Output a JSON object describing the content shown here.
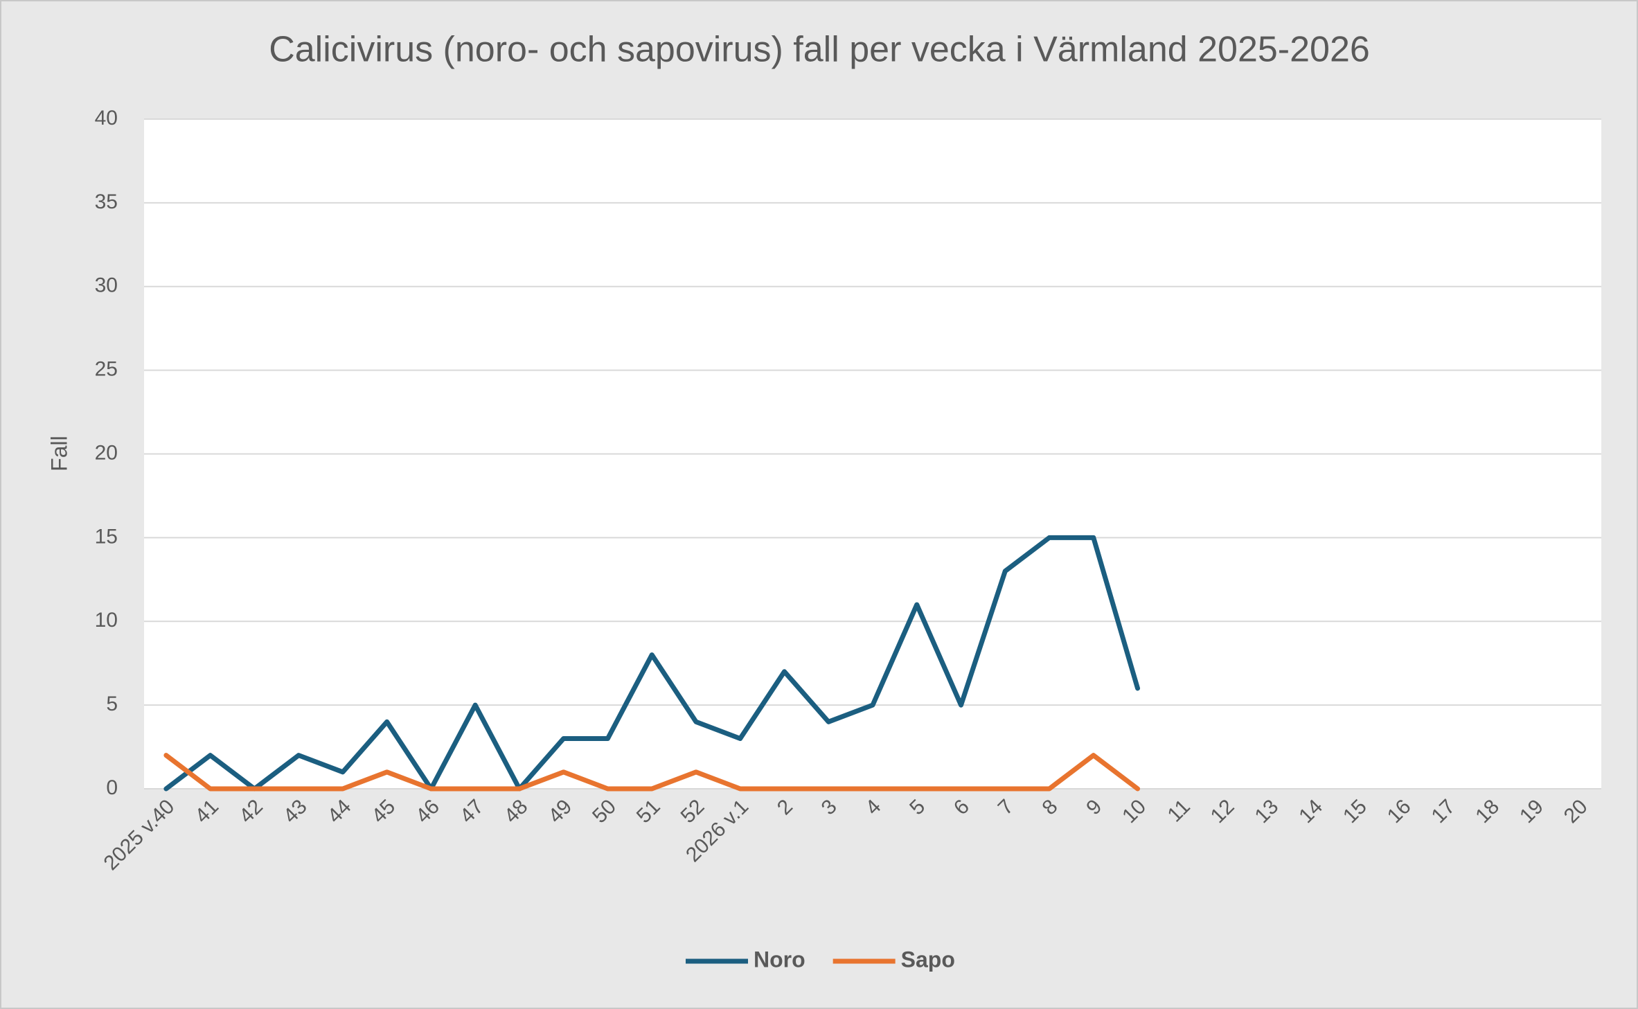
{
  "chart_data": {
    "type": "line",
    "title": "Calicivirus (noro- och sapovirus) fall per vecka i Värmland 2025-2026",
    "y_label": "Fall",
    "categories": [
      "2025 v.40",
      "41",
      "42",
      "43",
      "44",
      "45",
      "46",
      "47",
      "48",
      "49",
      "50",
      "51",
      "52",
      "2026 v.1",
      "2",
      "3",
      "4",
      "5",
      "6",
      "7",
      "8",
      "9",
      "10",
      "11",
      "12",
      "13",
      "14",
      "15",
      "16",
      "17",
      "18",
      "19",
      "20"
    ],
    "series": [
      {
        "name": "Noro",
        "color": "#1b5e80",
        "values": [
          0,
          2,
          0,
          2,
          1,
          4,
          0,
          5,
          0,
          3,
          3,
          8,
          4,
          3,
          7,
          4,
          5,
          11,
          5,
          13,
          15,
          15,
          6,
          null,
          null,
          null,
          null,
          null,
          null,
          null,
          null,
          null,
          null
        ]
      },
      {
        "name": "Sapo",
        "color": "#e8742f",
        "values": [
          2,
          0,
          0,
          0,
          0,
          1,
          0,
          0,
          0,
          1,
          0,
          0,
          1,
          0,
          0,
          0,
          0,
          0,
          0,
          0,
          0,
          2,
          0,
          null,
          null,
          null,
          null,
          null,
          null,
          null,
          null,
          null,
          null
        ]
      }
    ],
    "ylim": [
      0,
      40
    ],
    "yticks": [
      0,
      5,
      10,
      15,
      20,
      25,
      30,
      35,
      40
    ],
    "grid": true,
    "legend": "bottom"
  }
}
